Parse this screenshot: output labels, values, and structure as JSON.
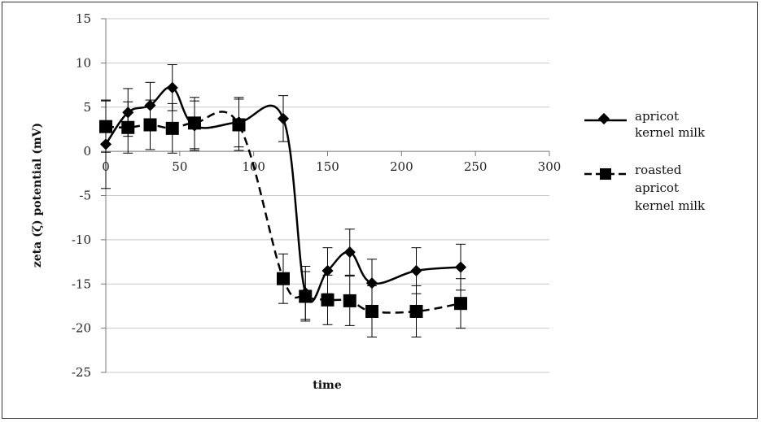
{
  "chart_data": {
    "type": "line",
    "title": "",
    "xlabel": "time",
    "ylabel": "zeta (ζ) potential (mV)",
    "xlim": [
      0,
      300
    ],
    "ylim": [
      -25,
      15
    ],
    "xticks": [
      0,
      50,
      100,
      150,
      200,
      250,
      300
    ],
    "yticks": [
      15,
      10,
      5,
      0,
      -5,
      -10,
      -15,
      -20,
      -25
    ],
    "grid": "horizontal",
    "legend_position": "right",
    "series": [
      {
        "name": "apricot kernel milk",
        "marker": "diamond",
        "line_style": "solid",
        "color": "#000000",
        "x": [
          0,
          15,
          30,
          45,
          60,
          90,
          120,
          135,
          150,
          165,
          180,
          210,
          240
        ],
        "y": [
          0.8,
          4.4,
          5.2,
          7.2,
          2.9,
          3.3,
          3.7,
          -16.0,
          -13.5,
          -11.4,
          -14.9,
          -13.5,
          -13.1
        ],
        "err": [
          5,
          2.7,
          2.6,
          2.6,
          2.8,
          2.8,
          2.6,
          3,
          2.6,
          2.6,
          2.7,
          2.6,
          2.6
        ]
      },
      {
        "name": "roasted apricot kernel milk",
        "marker": "square",
        "line_style": "dashed",
        "color": "#000000",
        "x": [
          0,
          15,
          30,
          45,
          60,
          90,
          120,
          135,
          150,
          165,
          180,
          210,
          240
        ],
        "y": [
          2.8,
          2.7,
          3.0,
          2.6,
          3.2,
          3.0,
          -14.4,
          -16.4,
          -16.8,
          -16.9,
          -18.1,
          -18.1,
          -17.2
        ],
        "err": [
          2.9,
          2.9,
          2.8,
          2.8,
          2.9,
          2.9,
          2.8,
          2.8,
          2.8,
          2.8,
          2.9,
          2.9,
          2.8
        ]
      }
    ]
  },
  "legend": {
    "apricot": [
      "apricot",
      "kernel milk"
    ],
    "roasted": [
      "roasted",
      "apricot",
      "kernel milk"
    ]
  }
}
